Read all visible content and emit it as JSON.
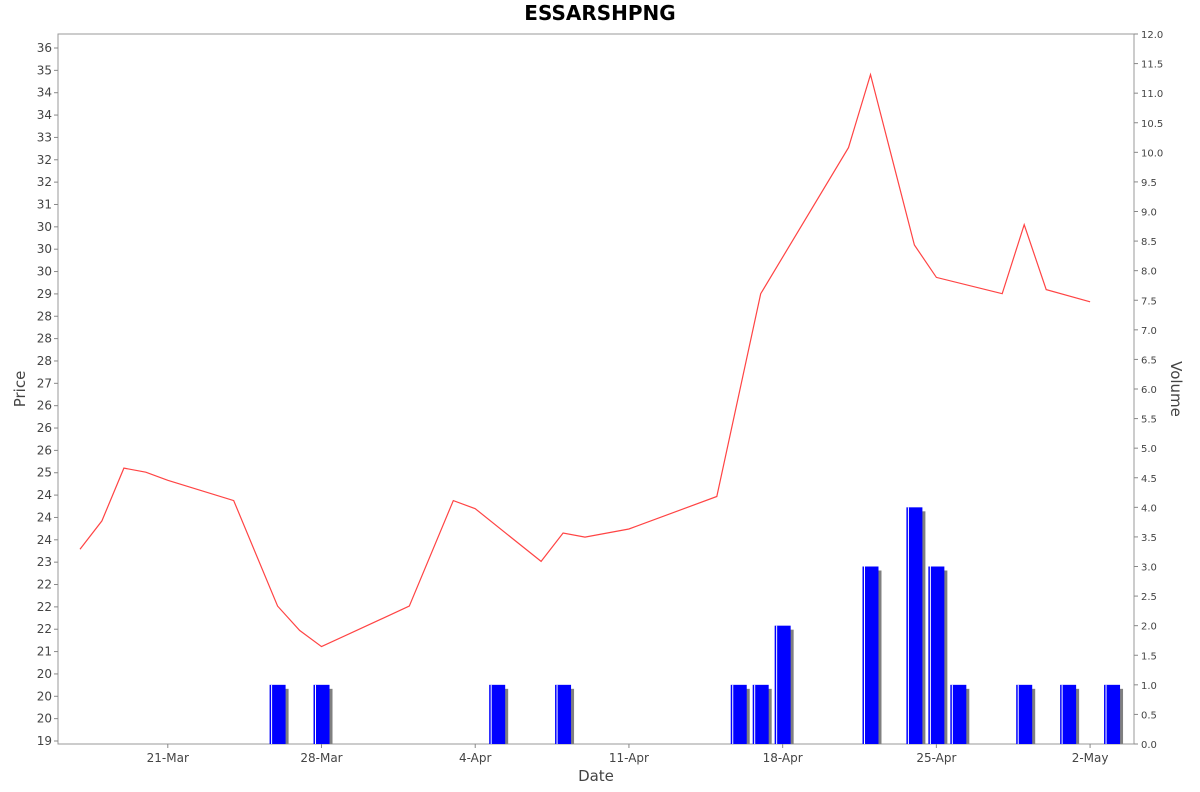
{
  "chart_data": {
    "type": "line",
    "title": "ESSARSHPNG",
    "xlabel": "Date",
    "ylabel": "Price",
    "y2label": "Volume",
    "x_tick_labels": [
      "21-Mar",
      "28-Mar",
      "4-Apr",
      "11-Apr",
      "18-Apr",
      "25-Apr",
      "2-May"
    ],
    "y_tick_labels": [
      "19",
      "20",
      "20",
      "20",
      "21",
      "22",
      "22",
      "22",
      "23",
      "24",
      "24",
      "24",
      "25",
      "26",
      "26",
      "26",
      "27",
      "28",
      "28",
      "28",
      "29",
      "30",
      "30",
      "30",
      "31",
      "32",
      "32",
      "33",
      "34",
      "34",
      "35",
      "36"
    ],
    "y2_tick_labels": [
      "0.0",
      "0.5",
      "1.0",
      "1.5",
      "2.0",
      "2.5",
      "3.0",
      "3.5",
      "4.0",
      "4.5",
      "5.0",
      "5.5",
      "6.0",
      "6.5",
      "7.0",
      "7.5",
      "8.0",
      "8.5",
      "9.0",
      "9.5",
      "10.0",
      "10.5",
      "11.0",
      "11.5",
      "12.0"
    ],
    "ylim": [
      19.1,
      36.6
    ],
    "y2lim": [
      0,
      12
    ],
    "xlim": [
      "2025-03-16",
      "2025-05-04"
    ],
    "grid": false,
    "series": [
      {
        "type": "line",
        "color": "#ff4444",
        "x": [
          "2025-03-17",
          "2025-03-18",
          "2025-03-19",
          "2025-03-20",
          "2025-03-21",
          "2025-03-24",
          "2025-03-26",
          "2025-03-27",
          "2025-03-28",
          "2025-04-01",
          "2025-04-03",
          "2025-04-04",
          "2025-04-07",
          "2025-04-08",
          "2025-04-09",
          "2025-04-11",
          "2025-04-15",
          "2025-04-17",
          "2025-04-21",
          "2025-04-22",
          "2025-04-24",
          "2025-04-25",
          "2025-04-28",
          "2025-04-29",
          "2025-04-30",
          "2025-05-02"
        ],
        "y": [
          23.9,
          24.6,
          25.9,
          25.8,
          25.6,
          25.1,
          22.5,
          21.9,
          21.5,
          22.5,
          25.1,
          24.9,
          23.6,
          24.3,
          24.2,
          24.4,
          25.2,
          30.2,
          33.8,
          35.6,
          31.4,
          30.6,
          30.2,
          31.9,
          30.3,
          30.0
        ]
      },
      {
        "type": "bar",
        "color": "#0000ff",
        "shadow_color": "#808080",
        "x": [
          "2025-03-26",
          "2025-03-28",
          "2025-04-05",
          "2025-04-08",
          "2025-04-16",
          "2025-04-17",
          "2025-04-18",
          "2025-04-22",
          "2025-04-24",
          "2025-04-25",
          "2025-04-26",
          "2025-04-29",
          "2025-05-01",
          "2025-05-03"
        ],
        "values": [
          1,
          1,
          1,
          1,
          1,
          1,
          2,
          3,
          4,
          3,
          1,
          1,
          1,
          1
        ]
      }
    ]
  }
}
